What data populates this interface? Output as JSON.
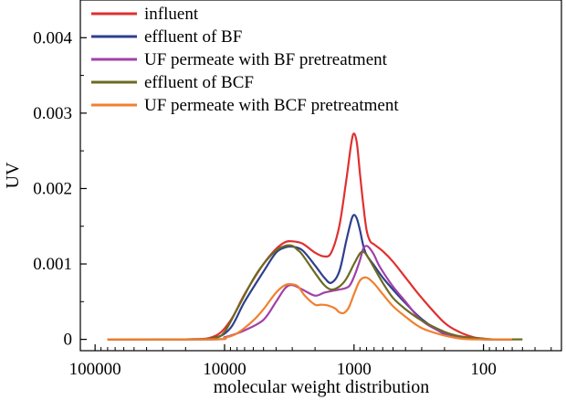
{
  "chart_data": {
    "type": "line",
    "xlabel": "molecular weight distribution",
    "ylabel": "UV",
    "x_scale": "log",
    "x_reversed": true,
    "xlim": [
      130000,
      25
    ],
    "ylim": [
      -0.00015,
      0.0045
    ],
    "x_ticks": [
      {
        "value": 100000,
        "label": "100000"
      },
      {
        "value": 10000,
        "label": "10000"
      },
      {
        "value": 1000,
        "label": "1000"
      },
      {
        "value": 100,
        "label": "100"
      }
    ],
    "y_ticks": [
      {
        "value": 0,
        "label": "0"
      },
      {
        "value": 0.001,
        "label": "0.001"
      },
      {
        "value": 0.002,
        "label": "0.002"
      },
      {
        "value": 0.003,
        "label": "0.003"
      },
      {
        "value": 0.004,
        "label": "0.004"
      }
    ],
    "grid": false,
    "legend_position": "top-left",
    "series": [
      {
        "name": "influent",
        "color": "#e03030",
        "x": [
          80000,
          20000,
          12000,
          9000,
          7000,
          5000,
          4000,
          3400,
          3000,
          2500,
          2000,
          1700,
          1500,
          1300,
          1150,
          1050,
          1000,
          950,
          900,
          850,
          800,
          750,
          700,
          600,
          500,
          400,
          300,
          200,
          150,
          120,
          100,
          90,
          75,
          60
        ],
        "y": [
          0,
          0,
          4e-05,
          0.00025,
          0.0006,
          0.001,
          0.0012,
          0.00129,
          0.0013,
          0.00127,
          0.00115,
          0.0011,
          0.00115,
          0.0015,
          0.0021,
          0.0026,
          0.00273,
          0.0026,
          0.0022,
          0.0018,
          0.00145,
          0.0013,
          0.00126,
          0.00117,
          0.00103,
          0.00082,
          0.00055,
          0.00022,
          9e-05,
          3e-05,
          1e-05,
          0,
          0,
          0
        ]
      },
      {
        "name": "effluent of BF",
        "color": "#2e3f8f",
        "x": [
          80000,
          20000,
          12000,
          9000,
          7000,
          5000,
          4000,
          3400,
          3000,
          2500,
          2000,
          1700,
          1500,
          1300,
          1150,
          1050,
          1000,
          950,
          900,
          850,
          800,
          700,
          600,
          500,
          400,
          300,
          200,
          150,
          120,
          100,
          90,
          75,
          60
        ],
        "y": [
          0,
          0,
          2e-05,
          0.00015,
          0.0005,
          0.0009,
          0.00115,
          0.00122,
          0.00123,
          0.00118,
          0.00098,
          0.00082,
          0.00075,
          0.0009,
          0.0013,
          0.00158,
          0.00165,
          0.0016,
          0.00145,
          0.00125,
          0.00112,
          0.00098,
          0.00082,
          0.00066,
          0.00048,
          0.00027,
          7e-05,
          2e-05,
          1e-05,
          0,
          0,
          0,
          0
        ]
      },
      {
        "name": "UF permeate with BF pretreatment",
        "color": "#a040a8",
        "x": [
          80000,
          12000,
          10000,
          9000,
          7000,
          5000,
          4000,
          3400,
          3000,
          2500,
          2000,
          1700,
          1500,
          1300,
          1100,
          1000,
          900,
          850,
          800,
          750,
          700,
          650,
          600,
          500,
          400,
          300,
          200,
          150,
          120,
          100,
          80,
          60
        ],
        "y": [
          0,
          0,
          3e-05,
          5e-05,
          0.00012,
          0.00026,
          0.0005,
          0.00068,
          0.00072,
          0.00066,
          0.00058,
          0.00062,
          0.00064,
          0.00066,
          0.0007,
          0.00083,
          0.00105,
          0.0012,
          0.00124,
          0.0012,
          0.00112,
          0.001,
          0.0009,
          0.0007,
          0.0005,
          0.00025,
          8e-05,
          3e-05,
          1e-05,
          0,
          0,
          0
        ]
      },
      {
        "name": "effluent of BCF",
        "color": "#6b6b22",
        "x": [
          80000,
          20000,
          12000,
          10000,
          8000,
          6000,
          5000,
          4000,
          3400,
          3000,
          2700,
          2500,
          2000,
          1700,
          1500,
          1300,
          1150,
          1000,
          900,
          850,
          800,
          700,
          600,
          500,
          400,
          300,
          200,
          150,
          100,
          80,
          60,
          50
        ],
        "y": [
          0,
          0,
          2e-05,
          0.0001,
          0.0004,
          0.0008,
          0.001,
          0.00118,
          0.00124,
          0.00124,
          0.00118,
          0.00112,
          0.00088,
          0.00072,
          0.00066,
          0.0007,
          0.0008,
          0.001,
          0.00114,
          0.00116,
          0.00112,
          0.00095,
          0.00075,
          0.00055,
          0.0004,
          0.00025,
          0.0001,
          4e-05,
          1e-05,
          0,
          0,
          0
        ]
      },
      {
        "name": "UF permeate with BCF pretreatment",
        "color": "#f08030",
        "x": [
          80000,
          12000,
          10000,
          8000,
          6000,
          5000,
          4000,
          3400,
          3000,
          2700,
          2400,
          2000,
          1800,
          1600,
          1400,
          1300,
          1200,
          1100,
          1000,
          900,
          800,
          700,
          600,
          500,
          400,
          300,
          200,
          150,
          120,
          100,
          80,
          60
        ],
        "y": [
          0,
          0,
          2e-05,
          8e-05,
          0.00025,
          0.0004,
          0.00062,
          0.00072,
          0.00073,
          0.0007,
          0.00058,
          0.00046,
          0.00046,
          0.00045,
          0.00041,
          0.00036,
          0.00035,
          0.00042,
          0.0006,
          0.00078,
          0.00082,
          0.00074,
          0.0006,
          0.00044,
          0.0003,
          0.00015,
          5e-05,
          1e-05,
          0,
          0,
          0,
          0
        ]
      }
    ]
  }
}
